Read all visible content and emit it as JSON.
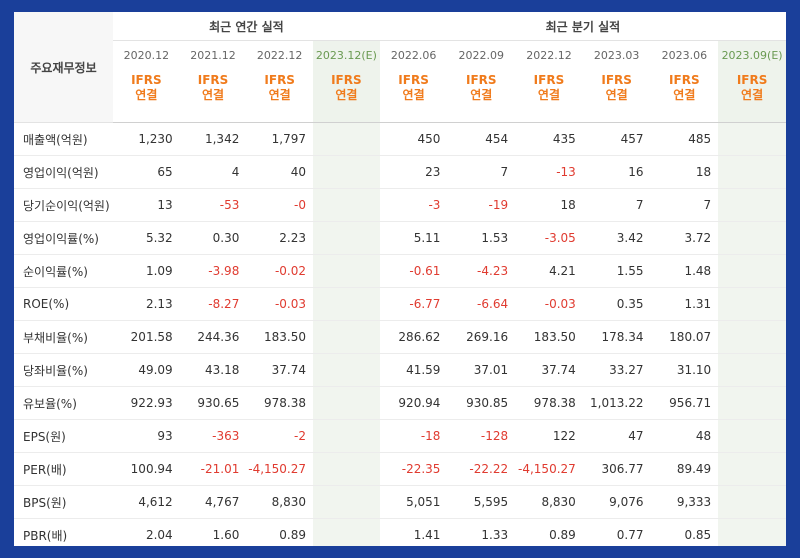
{
  "header": {
    "main_label": "주요재무정보",
    "annual_title": "최근 연간 실적",
    "quarter_title": "최근 분기 실적",
    "annual_periods": [
      "2020.12",
      "2021.12",
      "2022.12",
      "2023.12(E)"
    ],
    "quarter_periods": [
      "2022.06",
      "2022.09",
      "2022.12",
      "2023.03",
      "2023.06",
      "2023.09(E)"
    ],
    "accounting_line1": "IFRS",
    "accounting_line2": "연결"
  },
  "rows": [
    {
      "label": "매출액(억원)",
      "annual": [
        "1,230",
        "1,342",
        "1,797",
        ""
      ],
      "quarter": [
        "450",
        "454",
        "435",
        "457",
        "485",
        ""
      ]
    },
    {
      "label": "영업이익(억원)",
      "annual": [
        "65",
        "4",
        "40",
        ""
      ],
      "quarter": [
        "23",
        "7",
        "-13",
        "16",
        "18",
        ""
      ]
    },
    {
      "label": "당기순이익(억원)",
      "annual": [
        "13",
        "-53",
        "-0",
        ""
      ],
      "quarter": [
        "-3",
        "-19",
        "18",
        "7",
        "7",
        ""
      ]
    },
    {
      "label": "영업이익률(%)",
      "annual": [
        "5.32",
        "0.30",
        "2.23",
        ""
      ],
      "quarter": [
        "5.11",
        "1.53",
        "-3.05",
        "3.42",
        "3.72",
        ""
      ]
    },
    {
      "label": "순이익률(%)",
      "annual": [
        "1.09",
        "-3.98",
        "-0.02",
        ""
      ],
      "quarter": [
        "-0.61",
        "-4.23",
        "4.21",
        "1.55",
        "1.48",
        ""
      ]
    },
    {
      "label": "ROE(%)",
      "annual": [
        "2.13",
        "-8.27",
        "-0.03",
        ""
      ],
      "quarter": [
        "-6.77",
        "-6.64",
        "-0.03",
        "0.35",
        "1.31",
        ""
      ]
    },
    {
      "label": "부채비율(%)",
      "annual": [
        "201.58",
        "244.36",
        "183.50",
        ""
      ],
      "quarter": [
        "286.62",
        "269.16",
        "183.50",
        "178.34",
        "180.07",
        ""
      ]
    },
    {
      "label": "당좌비율(%)",
      "annual": [
        "49.09",
        "43.18",
        "37.74",
        ""
      ],
      "quarter": [
        "41.59",
        "37.01",
        "37.74",
        "33.27",
        "31.10",
        ""
      ]
    },
    {
      "label": "유보율(%)",
      "annual": [
        "922.93",
        "930.65",
        "978.38",
        ""
      ],
      "quarter": [
        "920.94",
        "930.85",
        "978.38",
        "1,013.22",
        "956.71",
        ""
      ]
    },
    {
      "label": "EPS(원)",
      "annual": [
        "93",
        "-363",
        "-2",
        ""
      ],
      "quarter": [
        "-18",
        "-128",
        "122",
        "47",
        "48",
        ""
      ]
    },
    {
      "label": "PER(배)",
      "annual": [
        "100.94",
        "-21.01",
        "-4,150.27",
        ""
      ],
      "quarter": [
        "-22.35",
        "-22.22",
        "-4,150.27",
        "306.77",
        "89.49",
        ""
      ]
    },
    {
      "label": "BPS(원)",
      "annual": [
        "4,612",
        "4,767",
        "8,830",
        ""
      ],
      "quarter": [
        "5,051",
        "5,595",
        "8,830",
        "9,076",
        "9,333",
        ""
      ]
    },
    {
      "label": "PBR(배)",
      "annual": [
        "2.04",
        "1.60",
        "0.89",
        ""
      ],
      "quarter": [
        "1.41",
        "1.33",
        "0.89",
        "0.77",
        "0.85",
        ""
      ]
    }
  ],
  "group_starts": [
    0,
    3,
    6,
    9
  ],
  "colors": {
    "frame": "#1a3f9a",
    "negative": "#e03b30",
    "ifrs": "#f07b1c",
    "estimate_bg": "#eef3ec"
  }
}
